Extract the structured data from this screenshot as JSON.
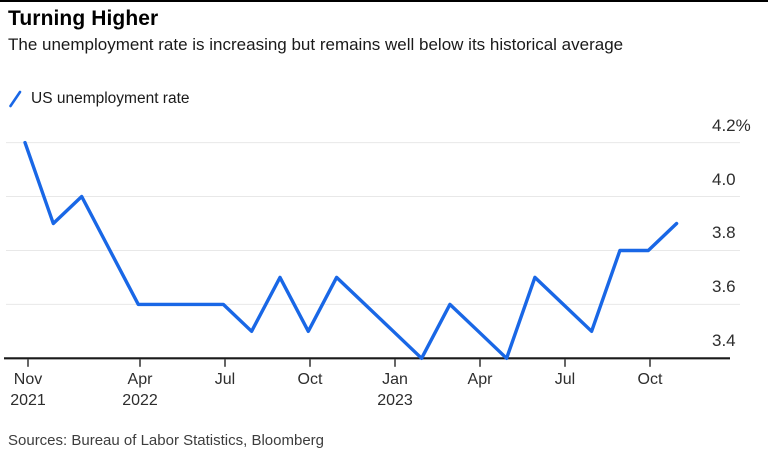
{
  "header": {
    "title": "Turning Higher",
    "subtitle": "The unemployment rate is increasing but remains well below its historical average"
  },
  "legend": {
    "label": "US unemployment rate",
    "icon": "slash-icon",
    "color": "#1967e6"
  },
  "chart_data": {
    "type": "line",
    "title": "Turning Higher",
    "series_name": "US unemployment rate",
    "unit": "%",
    "x": [
      "Nov 2021",
      "Dec 2021",
      "Jan 2022",
      "Feb 2022",
      "Mar 2022",
      "Apr 2022",
      "May 2022",
      "Jun 2022",
      "Jul 2022",
      "Aug 2022",
      "Sep 2022",
      "Oct 2022",
      "Nov 2022",
      "Dec 2022",
      "Jan 2023",
      "Feb 2023",
      "Mar 2023",
      "Apr 2023",
      "May 2023",
      "Jun 2023",
      "Jul 2023",
      "Aug 2023",
      "Sep 2023",
      "Oct 2023"
    ],
    "values": [
      4.2,
      3.9,
      4.0,
      3.8,
      3.6,
      3.6,
      3.6,
      3.6,
      3.5,
      3.7,
      3.5,
      3.7,
      3.6,
      3.5,
      3.4,
      3.6,
      3.5,
      3.4,
      3.7,
      3.6,
      3.5,
      3.8,
      3.8,
      3.9
    ],
    "ylim": [
      3.4,
      4.2
    ],
    "grid": true,
    "legend_position": "top-left",
    "line_color": "#1967e6",
    "y_ticks": [
      {
        "label": "4.2%",
        "value": 4.2
      },
      {
        "label": "4.0",
        "value": 4.0
      },
      {
        "label": "3.8",
        "value": 3.8
      },
      {
        "label": "3.6",
        "value": 3.6
      },
      {
        "label": "3.4",
        "value": 3.4
      }
    ],
    "x_ticks": [
      {
        "line1": "Nov",
        "line2": "2021"
      },
      {
        "line1": "Apr",
        "line2": "2022"
      },
      {
        "line1": "Jul",
        "line2": ""
      },
      {
        "line1": "Oct",
        "line2": ""
      },
      {
        "line1": "Jan",
        "line2": "2023"
      },
      {
        "line1": "Apr",
        "line2": ""
      },
      {
        "line1": "Jul",
        "line2": ""
      },
      {
        "line1": "Oct",
        "line2": ""
      }
    ]
  },
  "footer": {
    "source": "Sources: Bureau of Labor Statistics, Bloomberg"
  }
}
